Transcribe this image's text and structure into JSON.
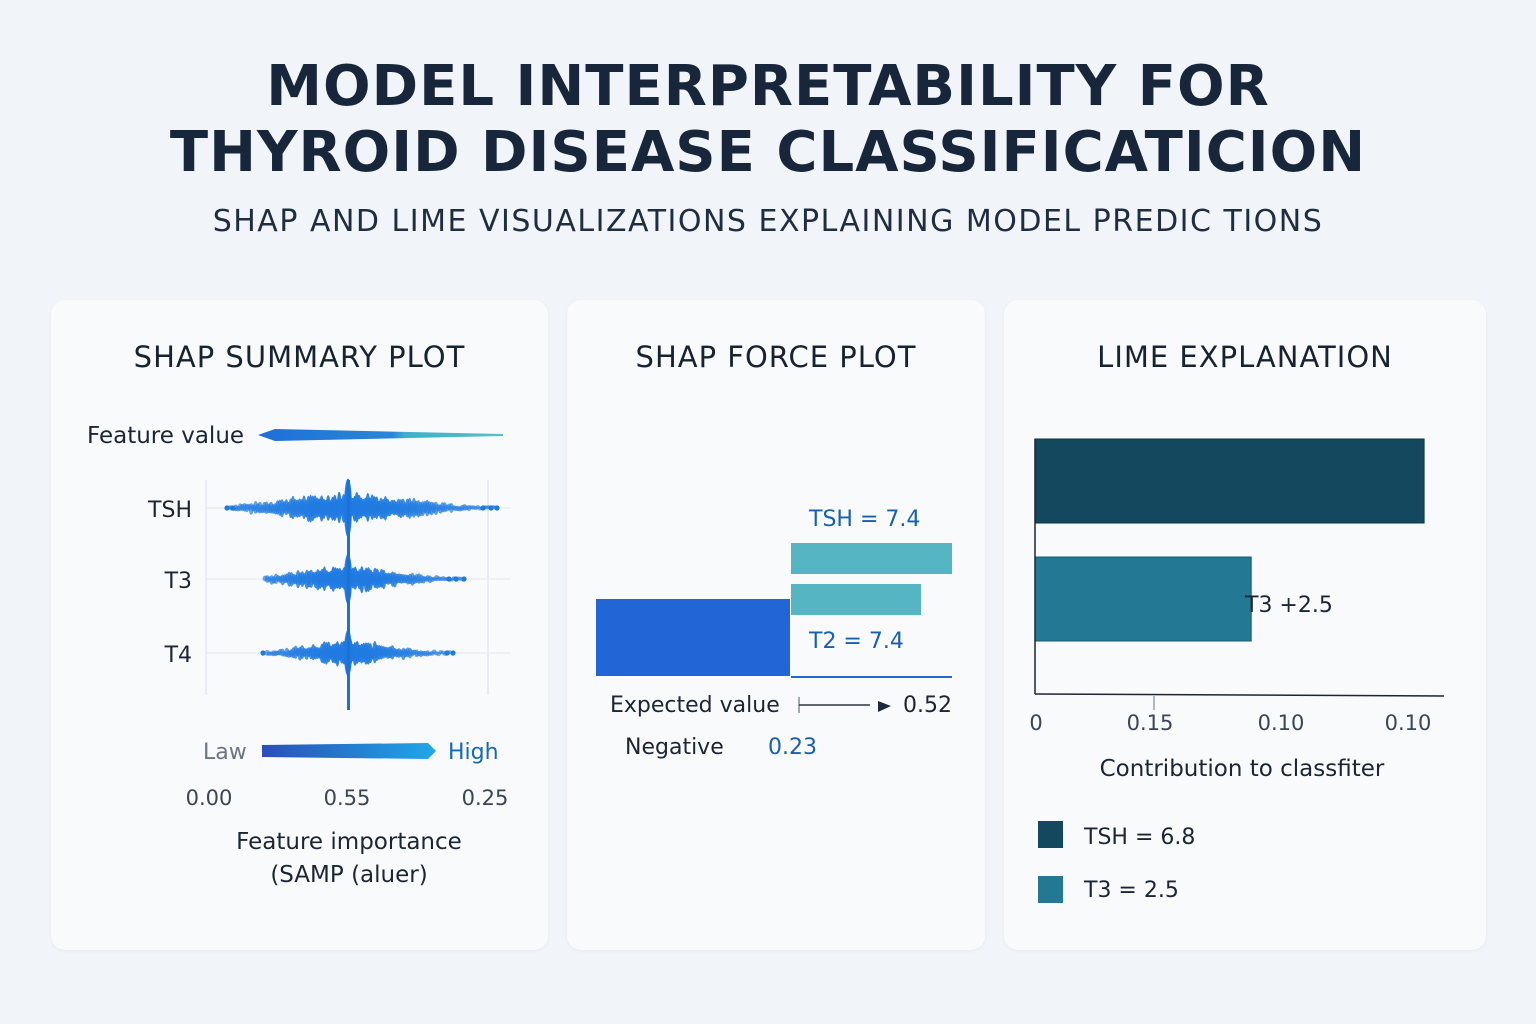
{
  "header": {
    "title_line1": "MODEL INTERPRETABILITY FOR",
    "title_line2": "THYROID DISEASE CLASSIFICATICION",
    "subtitle": "SHAP AND LIME VISUALIZATIONS EXPLAINING MODEL PREDIC TIONS"
  },
  "panels": {
    "summary": {
      "title": "SHAP SUMMARY PLOT"
    },
    "force": {
      "title": "SHAP FORCE PLOT"
    },
    "lime": {
      "title": "LIME EXPLANATION"
    }
  },
  "colors": {
    "shap_blue": "#1f7ae0",
    "force_blue": "#2266d6",
    "force_teal": "#56b5c3",
    "lime_dark": "#14485f",
    "lime_teal": "#237893",
    "legend_label": "#1760b0"
  },
  "chart_data": [
    {
      "type": "scatter",
      "subtype": "shap-summary-beeswarm",
      "title": "SHAP SUMMARY PLOT",
      "features": [
        "TSH",
        "T3",
        "T4"
      ],
      "color_scale": {
        "label": "Feature value",
        "low": "Law",
        "high": "High"
      },
      "x_ticks": [
        "0.00",
        "0.55",
        "0.25"
      ],
      "xlabel_line1": "Feature importance",
      "xlabel_line2": "(SAMP (aluer)",
      "grid": true
    },
    {
      "type": "bar",
      "subtype": "shap-force",
      "title": "SHAP FORCE PLOT",
      "labels": [
        "TSH = 7.4",
        "T2 = 7.4"
      ],
      "expected_label": "Expected value",
      "expected_value": "0.52",
      "negative_label": "Negative",
      "negative_value": "0.23"
    },
    {
      "type": "bar",
      "orientation": "horizontal",
      "title": "LIME EXPLANATION",
      "bar_values": [
        0.99,
        0.55
      ],
      "bar_annotation": "T3 +2.5",
      "x_ticks": [
        "0",
        "0.15",
        "0.10",
        "0.10"
      ],
      "xlabel": "Contribution to classfiter",
      "legend": [
        "TSH = 6.8",
        "T3 = 2.5"
      ],
      "legend_placement": "bottom-left"
    }
  ]
}
